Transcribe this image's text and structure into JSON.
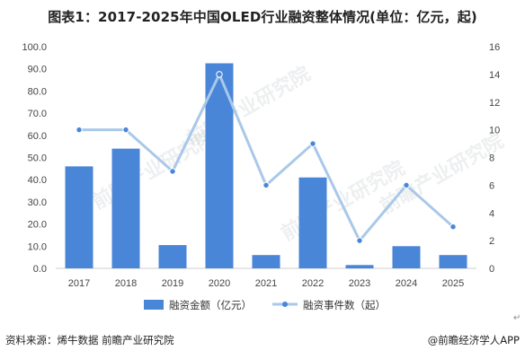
{
  "chart_data": {
    "type": "bar+line",
    "title": "图表1：2017-2025年中国OLED行业融资整体情况(单位：亿元，起)",
    "categories": [
      "2017",
      "2018",
      "2019",
      "2020",
      "2021",
      "2022",
      "2023",
      "2024",
      "2025"
    ],
    "series": [
      {
        "name": "融资金额（亿元）",
        "type": "bar",
        "axis": "left",
        "color": "#4a86d8",
        "values": [
          46.0,
          54.0,
          10.5,
          92.5,
          6.0,
          41.0,
          1.5,
          10.0,
          6.0
        ]
      },
      {
        "name": "融资事件数（起）",
        "type": "line",
        "axis": "right",
        "color": "#a9c8ea",
        "marker_color": "#4a86d8",
        "values": [
          10,
          10,
          7,
          14,
          6,
          9,
          2,
          6,
          3
        ]
      }
    ],
    "y_left": {
      "min": 0,
      "max": 100,
      "ticks": [
        "0.0",
        "10.0",
        "20.0",
        "30.0",
        "40.0",
        "50.0",
        "60.0",
        "70.0",
        "80.0",
        "90.0",
        "100.0"
      ]
    },
    "y_right": {
      "min": 0,
      "max": 16,
      "ticks": [
        "0",
        "2",
        "4",
        "6",
        "8",
        "10",
        "12",
        "14",
        "16"
      ]
    },
    "grid": false,
    "legend_placement": "bottom"
  },
  "footer": {
    "source": "资料来源：烯牛数据 前瞻产业研究院",
    "brand": "@前瞻经济学人APP"
  },
  "watermark": "前瞻产业研究院"
}
